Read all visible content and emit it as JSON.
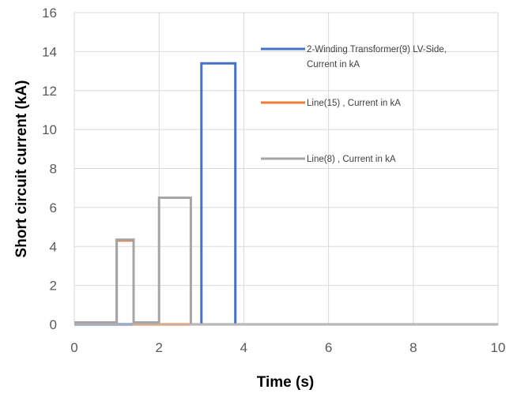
{
  "chart_data": {
    "type": "line",
    "title": "",
    "xlabel": "Time (s)",
    "ylabel": "Short circuit current (kA)",
    "xlim": [
      0,
      10
    ],
    "ylim": [
      0,
      16
    ],
    "xticks": [
      0,
      2,
      4,
      6,
      8,
      10
    ],
    "yticks": [
      0,
      2,
      4,
      6,
      8,
      10,
      12,
      14,
      16
    ],
    "grid": true,
    "legend_position": "right",
    "series": [
      {
        "name": "2-Winding Transformer(9) LV-Side, Current in kA",
        "legend_lines": [
          "2-Winding Transformer(9) LV-Side,",
          "Current in kA"
        ],
        "color": "#4472C4",
        "x": [
          0,
          3.0,
          3.0,
          3.8,
          3.8,
          10
        ],
        "y": [
          0,
          0,
          13.4,
          13.4,
          0,
          0
        ]
      },
      {
        "name": "Line(15) , Current in kA",
        "legend_lines": [
          "Line(15) , Current in kA"
        ],
        "color": "#ED7D31",
        "x": [
          0,
          1.0,
          1.0,
          1.4,
          1.4,
          10
        ],
        "y": [
          0.05,
          0.05,
          4.3,
          4.3,
          0,
          0
        ]
      },
      {
        "name": "Line(8) , Current in kA",
        "legend_lines": [
          "Line(8) , Current in kA"
        ],
        "color": "#A5A5A5",
        "x": [
          0,
          1.0,
          1.0,
          1.4,
          1.4,
          2.0,
          2.0,
          2.75,
          2.75,
          10
        ],
        "y": [
          0.1,
          0.1,
          4.35,
          4.35,
          0.1,
          0.1,
          6.5,
          6.5,
          0,
          0
        ]
      }
    ]
  }
}
